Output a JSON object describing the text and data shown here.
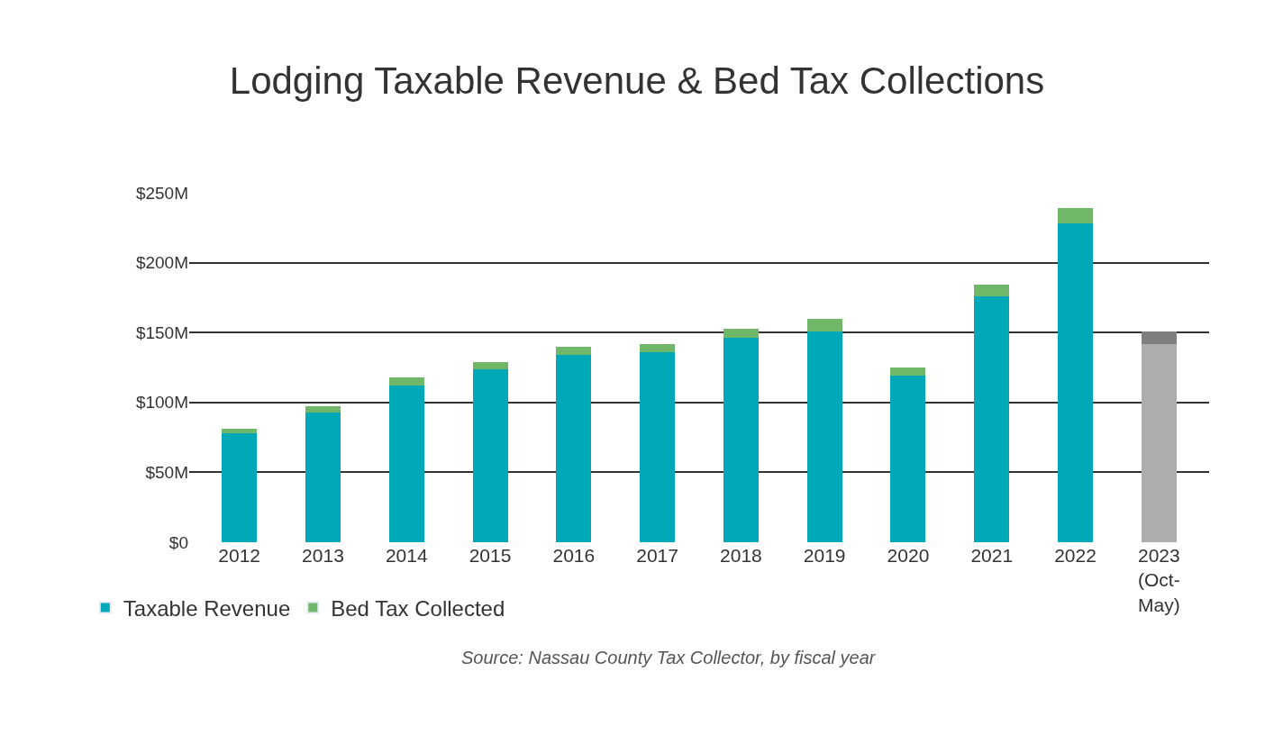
{
  "chart_data": {
    "type": "bar",
    "title": "Lodging Taxable Revenue & Bed Tax Collections",
    "categories": [
      "2012",
      "2013",
      "2014",
      "2015",
      "2016",
      "2017",
      "2018",
      "2019",
      "2020",
      "2021",
      "2022",
      "2023\n(Oct-\nMay)"
    ],
    "stacked": true,
    "series": [
      {
        "name": "Taxable Revenue",
        "color": "#00a8b8",
        "colors": [
          "#00a8b8",
          "#00a8b8",
          "#00a8b8",
          "#00a8b8",
          "#00a8b8",
          "#00a8b8",
          "#00a8b8",
          "#00a8b8",
          "#00a8b8",
          "#00a8b8",
          "#00a8b8",
          "#adadad"
        ],
        "values": [
          78,
          93,
          112,
          124,
          134,
          136,
          146,
          151,
          119,
          176,
          228,
          142
        ]
      },
      {
        "name": "Bed Tax Collected",
        "color": "#70b76a",
        "colors": [
          "#70b76a",
          "#70b76a",
          "#70b76a",
          "#70b76a",
          "#70b76a",
          "#70b76a",
          "#70b76a",
          "#70b76a",
          "#70b76a",
          "#70b76a",
          "#70b76a",
          "#7f7f7f"
        ],
        "values": [
          3,
          4.5,
          6,
          5,
          6,
          6,
          6.5,
          9,
          6,
          8,
          11,
          9
        ]
      }
    ],
    "ylim": [
      0,
      250
    ],
    "yticks": [
      {
        "value": 0,
        "label": "$0"
      },
      {
        "value": 50,
        "label": "$50M"
      },
      {
        "value": 100,
        "label": "$100M"
      },
      {
        "value": 150,
        "label": "$150M"
      },
      {
        "value": 200,
        "label": "$200M"
      },
      {
        "value": 250,
        "label": "$250M"
      }
    ],
    "grid": "y",
    "legend": "bottom left",
    "annotations": [
      "Source: Nassau County Tax Collector, by fiscal year"
    ]
  }
}
